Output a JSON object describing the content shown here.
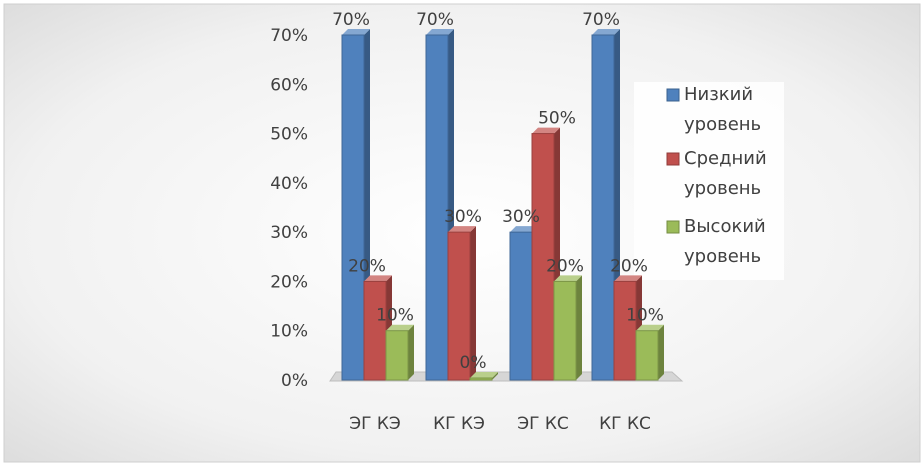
{
  "chart_data": {
    "type": "bar",
    "categories": [
      "ЭГ КЭ",
      "КГ КЭ",
      "ЭГ КС",
      "КГ КС"
    ],
    "series": [
      {
        "name": "Низкий уровень",
        "values": [
          0.7,
          0.7,
          0.3,
          0.7
        ],
        "labels": [
          "70%",
          "70%",
          "30%",
          "70%"
        ],
        "color": "#4F81BD"
      },
      {
        "name": "Средний уровень",
        "values": [
          0.2,
          0.3,
          0.5,
          0.2
        ],
        "labels": [
          "20%",
          "30%",
          "50%",
          "20%"
        ],
        "color": "#C0504D"
      },
      {
        "name": "Высокий уровень",
        "values": [
          0.1,
          0.0,
          0.2,
          0.1
        ],
        "labels": [
          "10%",
          "0%",
          "20%",
          "10%"
        ],
        "color": "#9BBB59"
      }
    ],
    "ylim": [
      0,
      0.7
    ],
    "yticks": [
      "0%",
      "10%",
      "20%",
      "30%",
      "40%",
      "50%",
      "60%",
      "70%"
    ],
    "title": "",
    "xlabel": "",
    "ylabel": "",
    "grid": false,
    "legend_position": "right"
  }
}
